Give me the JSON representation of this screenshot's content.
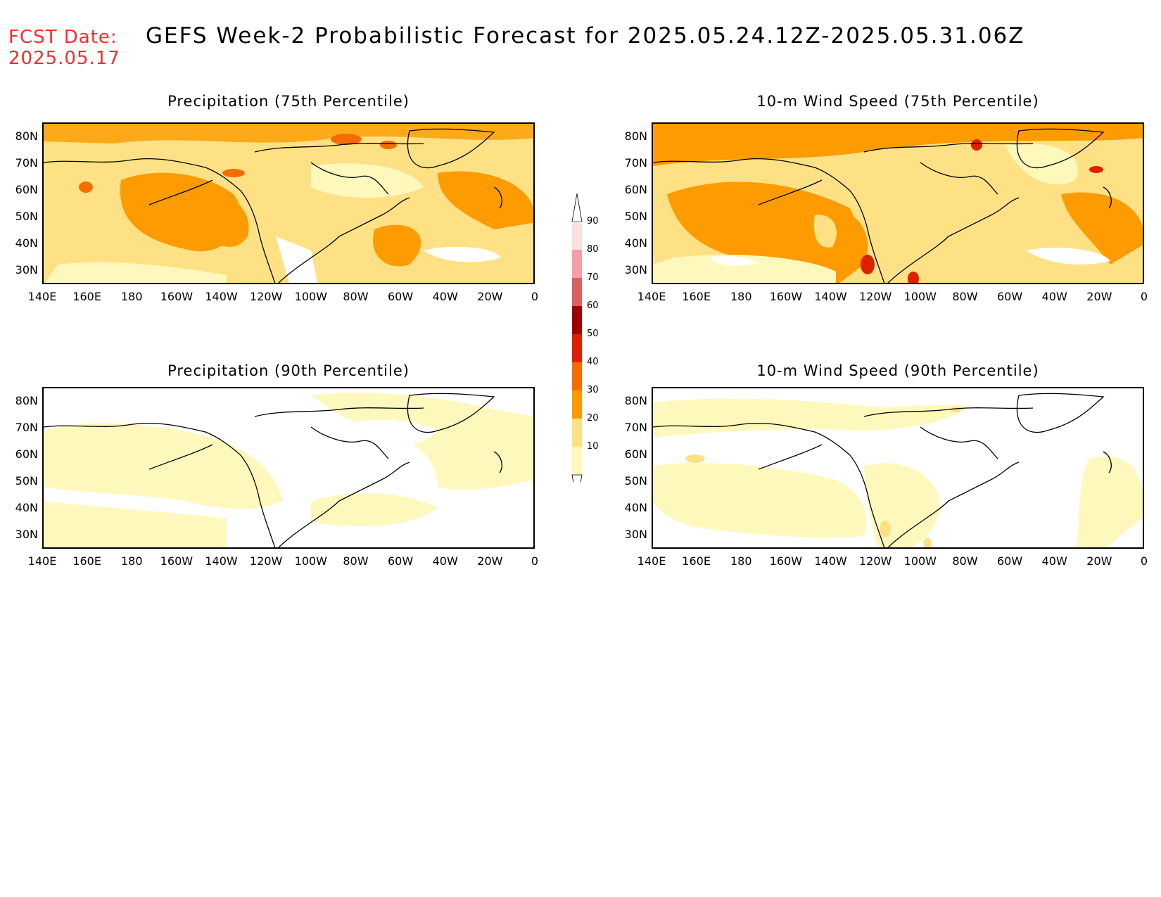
{
  "header": {
    "fcst_label": "FCST Date:",
    "fcst_date": "2025.05.17",
    "title": "GEFS Week-2 Probabilistic Forecast for 2025.05.24.12Z-2025.05.31.06Z"
  },
  "axes": {
    "lat_labels": [
      "80N",
      "70N",
      "60N",
      "50N",
      "40N",
      "30N"
    ],
    "lon_labels": [
      "140E",
      "160E",
      "180",
      "160W",
      "140W",
      "120W",
      "100W",
      "80W",
      "60W",
      "40W",
      "20W",
      "0"
    ]
  },
  "panels": [
    {
      "id": "precip75",
      "title": "Precipitation (75th Percentile)"
    },
    {
      "id": "wind75",
      "title": "10-m Wind Speed (75th Percentile)"
    },
    {
      "id": "precip90",
      "title": "Precipitation (90th Percentile)"
    },
    {
      "id": "wind90",
      "title": "10-m Wind Speed (90th Percentile)"
    }
  ],
  "colorbar": {
    "levels": [
      "90",
      "80",
      "70",
      "60",
      "50",
      "40",
      "30",
      "20",
      "10"
    ],
    "colors": [
      "#fde0e0",
      "#f2a0a5",
      "#d96060",
      "#a00000",
      "#dd2000",
      "#f56d00",
      "#fd9b00",
      "#fde184",
      "#fff8bc"
    ]
  },
  "palette": {
    "c10": "#fff8bc",
    "c20": "#fde184",
    "c30": "#fd9b00",
    "c40": "#f56d00",
    "c50": "#dd2000",
    "fcst_color": "#ff2a2a"
  }
}
